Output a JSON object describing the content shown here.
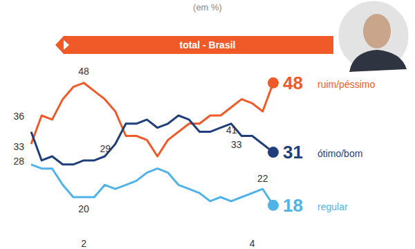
{
  "chart_data": {
    "type": "line",
    "title": "total - Brasil",
    "subtitle": "(em %)",
    "categories": [
      null,
      null,
      null,
      null,
      null,
      null,
      null,
      null,
      null,
      null,
      null,
      null,
      null,
      null,
      null,
      null,
      null,
      null,
      null,
      null,
      null,
      null,
      null,
      null
    ],
    "ylim": [
      10,
      55
    ],
    "tick_labels": false,
    "grid": false,
    "data_labels": true,
    "series": [
      {
        "name": "ruim/péssimo",
        "color": "#f05a28",
        "values": [
          33,
          40,
          39,
          44,
          47,
          48,
          46,
          44,
          41,
          35,
          35,
          34,
          30,
          34,
          36,
          38,
          38,
          40,
          40,
          42,
          44,
          43,
          41,
          48
        ],
        "value_labels": [
          "33",
          null,
          null,
          null,
          null,
          "48",
          null,
          null,
          null,
          null,
          null,
          null,
          null,
          null,
          null,
          null,
          null,
          null,
          null,
          null,
          null,
          null,
          "41",
          "48"
        ]
      },
      {
        "name": "ótimo/bom",
        "color": "#1f3f7a",
        "values": [
          36,
          29,
          30,
          28,
          28,
          29,
          29,
          30,
          33,
          38,
          38,
          39,
          37,
          38,
          40,
          39,
          36,
          36,
          37,
          38,
          35,
          35,
          33,
          31
        ],
        "value_labels": [
          "36",
          null,
          null,
          null,
          null,
          null,
          "29",
          null,
          null,
          null,
          null,
          null,
          null,
          null,
          null,
          null,
          null,
          null,
          null,
          null,
          null,
          null,
          "33",
          "31"
        ]
      },
      {
        "name": "regular",
        "color": "#4fb3e8",
        "values": [
          28,
          27,
          27,
          23,
          20,
          20,
          20,
          23,
          22,
          23,
          24,
          26,
          27,
          26,
          23,
          22,
          21,
          19,
          20,
          19,
          20,
          21,
          22,
          18
        ],
        "value_labels": [
          "28",
          null,
          null,
          null,
          null,
          "20",
          null,
          null,
          null,
          null,
          null,
          null,
          null,
          null,
          null,
          null,
          null,
          null,
          null,
          null,
          null,
          null,
          "22",
          "18"
        ]
      }
    ],
    "annotations": [
      {
        "text": "2",
        "x": 5
      },
      {
        "text": "4",
        "x": 21
      }
    ]
  }
}
